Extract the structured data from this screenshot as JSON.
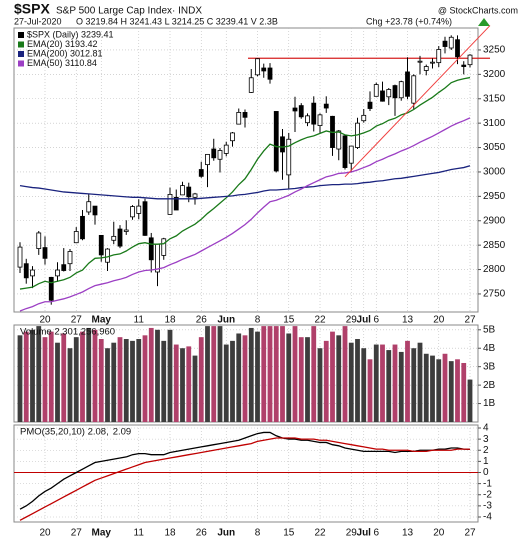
{
  "chart_data": [
    {
      "type": "candlestick",
      "title": "$SPX",
      "subtitle": "S&P 500 Large Cap Index· INDX",
      "source": "@ StockCharts.com",
      "date": "27-Jul-2020",
      "quote": "O 3219.84  H 3241.43  L 3214.25  C 3239.41  V 2.3B",
      "change": "Chg +23.78 (+0.74%)",
      "categories": [
        null,
        null,
        null,
        null,
        "20",
        null,
        null,
        null,
        null,
        "27",
        null,
        null,
        null,
        "May",
        null,
        null,
        null,
        null,
        null,
        "11",
        null,
        null,
        null,
        null,
        "18",
        null,
        null,
        null,
        null,
        "26",
        null,
        null,
        null,
        "Jun",
        null,
        null,
        null,
        null,
        "8",
        null,
        null,
        null,
        null,
        "15",
        null,
        null,
        null,
        null,
        "22",
        null,
        null,
        null,
        null,
        "29",
        null,
        "Jul",
        null,
        "6",
        null,
        null,
        null,
        null,
        "13",
        null,
        null,
        null,
        null,
        "20",
        null,
        null,
        null,
        null,
        "27"
      ],
      "ylim": [
        2713,
        3295
      ],
      "yticks": [
        2750,
        2800,
        2850,
        2900,
        2950,
        3000,
        3050,
        3100,
        3150,
        3200,
        3250
      ],
      "grid": true,
      "hline": {
        "value": 3233,
        "color": "#d62020"
      },
      "trendline": {
        "values": [
          2990,
          3300
        ],
        "color": "#f04040"
      },
      "series": [
        {
          "name": "$SPX (Daily) 3239.41",
          "type": "candlestick",
          "color": "#000000",
          "up_color": "#ffffff",
          "down_color": "#000000",
          "open": [
            2805,
            2812,
            2787,
            2843,
            2845,
            2784,
            2787,
            2810,
            2812,
            2855,
            2909,
            2918,
            2930,
            2870,
            2815,
            2860,
            2883,
            2878,
            2908,
            2915,
            2939,
            2865,
            2795,
            2829,
            2913,
            2948,
            2953,
            2969,
            2948,
            3005,
            3015,
            3047,
            3026,
            3038,
            3064,
            3098,
            3122,
            3163,
            3199,
            3213,
            3213,
            3124,
            3072,
            2994,
            3131,
            3136,
            3101,
            3141,
            3095,
            3139,
            3114,
            3047,
            3074,
            3018,
            3050,
            3105,
            3143,
            3155,
            3166,
            3154,
            3177,
            3152,
            3205,
            3141,
            3225,
            3208,
            3224,
            3224,
            3268,
            3254,
            3271,
            3219,
            3219.84
          ],
          "high": [
            2856,
            2822,
            2807,
            2879,
            2868,
            2785,
            2815,
            2844,
            2842,
            2887,
            2922,
            2954,
            2930,
            2870,
            2844,
            2898,
            2891,
            2901,
            2932,
            2944,
            2945,
            2875,
            2853,
            2865,
            2968,
            2964,
            2980,
            2978,
            2957,
            3021,
            3036,
            3068,
            3049,
            3062,
            3082,
            3130,
            3128,
            3211,
            3233,
            3222,
            3223,
            3124,
            3088,
            3080,
            3154,
            3141,
            3120,
            3155,
            3120,
            3155,
            3115,
            3086,
            3074,
            3053,
            3111,
            3129,
            3165,
            3183,
            3185,
            3172,
            3179,
            3187,
            3235,
            3200,
            3238,
            3220,
            3233,
            3258,
            3277,
            3280,
            3280,
            3227,
            3241.43
          ],
          "low": [
            2793,
            2771,
            2762,
            2830,
            2810,
            2728,
            2775,
            2796,
            2797,
            2854,
            2860,
            2912,
            2892,
            2816,
            2797,
            2852,
            2844,
            2871,
            2902,
            2903,
            2869,
            2794,
            2766,
            2820,
            2913,
            2922,
            2953,
            2938,
            2933,
            2988,
            2969,
            3023,
            2999,
            3032,
            3052,
            3098,
            3091,
            3162,
            3196,
            3193,
            3181,
            2999,
            2984,
            2966,
            3082,
            3109,
            3094,
            3083,
            3079,
            3121,
            3033,
            3024,
            3005,
            2999,
            3047,
            3101,
            3125,
            3155,
            3144,
            3137,
            3115,
            3146,
            3149,
            3128,
            3200,
            3198,
            3212,
            3215,
            3243,
            3250,
            3221,
            3200,
            3214.25
          ],
          "close": [
            2846,
            2783,
            2799,
            2875,
            2823,
            2737,
            2799,
            2798,
            2837,
            2878,
            2863,
            2939,
            2912,
            2830,
            2842,
            2868,
            2848,
            2881,
            2929,
            2930,
            2870,
            2820,
            2852,
            2863,
            2954,
            2922,
            2972,
            2949,
            2955,
            2991,
            3036,
            3029,
            3044,
            3055,
            3080,
            3122,
            3112,
            3193,
            3232,
            3207,
            3190,
            3002,
            3041,
            3067,
            3125,
            3113,
            3115,
            3098,
            3117,
            3131,
            3050,
            3084,
            3009,
            3053,
            3100,
            3116,
            3130,
            3179,
            3145,
            3169,
            3152,
            3185,
            3155,
            3197,
            3227,
            3216,
            3225,
            3251,
            3257,
            3276,
            3236,
            3216,
            3239.41
          ]
        },
        {
          "name": "EMA(20) 3193.42",
          "type": "line",
          "color": "#1a7a1a",
          "values": [
            2760,
            2762,
            2764,
            2771,
            2776,
            2773,
            2776,
            2779,
            2784,
            2793,
            2799,
            2813,
            2823,
            2824,
            2826,
            2830,
            2832,
            2838,
            2846,
            2853,
            2855,
            2852,
            2852,
            2853,
            2863,
            2869,
            2879,
            2886,
            2893,
            2903,
            2915,
            2925,
            2936,
            2947,
            2959,
            2974,
            2986,
            3005,
            3026,
            3043,
            3057,
            3052,
            3051,
            3053,
            3060,
            3066,
            3071,
            3074,
            3079,
            3084,
            3081,
            3082,
            3076,
            3074,
            3076,
            3080,
            3085,
            3094,
            3099,
            3106,
            3110,
            3117,
            3121,
            3128,
            3137,
            3145,
            3153,
            3163,
            3172,
            3183,
            3188,
            3191,
            3193.42
          ]
        },
        {
          "name": "EMA(200) 3012.81",
          "type": "line",
          "color": "#1a237e",
          "values": [
            2972,
            2970,
            2968,
            2967,
            2965,
            2963,
            2961,
            2959,
            2958,
            2957,
            2956,
            2955,
            2954,
            2953,
            2952,
            2951,
            2950,
            2949,
            2948,
            2948,
            2947,
            2946,
            2945,
            2945,
            2945,
            2945,
            2945,
            2945,
            2945,
            2946,
            2947,
            2948,
            2949,
            2950,
            2951,
            2953,
            2954,
            2956,
            2958,
            2961,
            2963,
            2963,
            2964,
            2965,
            2966,
            2968,
            2969,
            2970,
            2972,
            2973,
            2974,
            2974,
            2975,
            2975,
            2976,
            2978,
            2979,
            2981,
            2982,
            2984,
            2986,
            2987,
            2989,
            2991,
            2993,
            2995,
            2997,
            2999,
            3002,
            3005,
            3007,
            3009,
            3012.81
          ]
        },
        {
          "name": "EMA(50) 3110.84",
          "type": "line",
          "color": "#9c3fc4",
          "values": [
            2715,
            2720,
            2724,
            2730,
            2734,
            2734,
            2737,
            2740,
            2744,
            2749,
            2754,
            2761,
            2767,
            2770,
            2773,
            2777,
            2780,
            2784,
            2790,
            2795,
            2798,
            2799,
            2801,
            2804,
            2810,
            2815,
            2821,
            2826,
            2831,
            2838,
            2845,
            2852,
            2859,
            2866,
            2874,
            2883,
            2892,
            2903,
            2916,
            2928,
            2939,
            2942,
            2947,
            2952,
            2959,
            2965,
            2972,
            2978,
            2984,
            2990,
            2993,
            2997,
            2998,
            3000,
            3004,
            3009,
            3014,
            3021,
            3026,
            3032,
            3037,
            3043,
            3048,
            3054,
            3061,
            3067,
            3073,
            3080,
            3087,
            3094,
            3100,
            3105,
            3110.84
          ]
        }
      ]
    },
    {
      "type": "bar",
      "legend": "Volume 2,301,256,960",
      "up_color": "#3d3d3d",
      "down_color": "#b0406a",
      "ylim": [
        0,
        5.26
      ],
      "grid": true,
      "yticks": [
        {
          "value": 1,
          "label": "1B"
        },
        {
          "value": 2,
          "label": "2B"
        },
        {
          "value": 3,
          "label": "3B"
        },
        {
          "value": 4,
          "label": "4B"
        },
        {
          "value": 5,
          "label": "5B"
        }
      ],
      "values": [
        4.7,
        4.9,
        5.0,
        5.2,
        4.6,
        4.9,
        4.3,
        4.8,
        4.0,
        4.6,
        4.9,
        5.1,
        5.0,
        4.5,
        4.0,
        4.3,
        4.6,
        4.5,
        4.4,
        4.5,
        4.7,
        5.1,
        5.0,
        4.4,
        5.0,
        4.2,
        4.0,
        4.1,
        3.6,
        4.6,
        5.2,
        5.2,
        5.2,
        4.2,
        4.4,
        4.8,
        4.7,
        5.1,
        4.9,
        5.2,
        5.2,
        5.2,
        5.2,
        4.8,
        5.2,
        4.6,
        4.6,
        5.2,
        4.0,
        4.4,
        4.9,
        4.7,
        5.2,
        4.3,
        4.5,
        4.0,
        3.4,
        4.2,
        4.2,
        3.9,
        4.2,
        3.8,
        4.4,
        4.0,
        4.3,
        3.7,
        3.6,
        3.4,
        3.7,
        3.3,
        3.4,
        3.2,
        2.3
      ]
    },
    {
      "type": "line",
      "ylim": [
        -4.45,
        4.27
      ],
      "yticks": [
        -4,
        -3,
        -2,
        -1,
        0,
        1,
        2,
        3,
        4
      ],
      "grid": true,
      "zero_line_color": "#c00000",
      "series": [
        {
          "name": "PMO(35,20,10) 2.08,",
          "color": "#000000",
          "values": [
            -3.3,
            -3.0,
            -2.6,
            -2.1,
            -1.7,
            -1.4,
            -1.0,
            -0.6,
            -0.3,
            0.0,
            0.3,
            0.6,
            0.9,
            1.0,
            1.1,
            1.2,
            1.3,
            1.4,
            1.6,
            1.7,
            1.7,
            1.6,
            1.6,
            1.6,
            1.8,
            1.9,
            2.0,
            2.1,
            2.2,
            2.3,
            2.4,
            2.5,
            2.6,
            2.7,
            2.8,
            2.9,
            3.1,
            3.3,
            3.5,
            3.6,
            3.6,
            3.3,
            3.1,
            3.0,
            3.0,
            2.9,
            2.9,
            2.8,
            2.7,
            2.7,
            2.5,
            2.4,
            2.2,
            2.1,
            2.0,
            1.9,
            1.9,
            1.9,
            1.9,
            1.9,
            1.8,
            1.9,
            1.9,
            1.9,
            2.0,
            2.0,
            2.0,
            2.1,
            2.1,
            2.2,
            2.2,
            2.1,
            2.08
          ]
        },
        {
          "name": "2.09",
          "color": "#c00000",
          "values": [
            -4.3,
            -4.0,
            -3.7,
            -3.4,
            -3.1,
            -2.8,
            -2.5,
            -2.2,
            -1.9,
            -1.6,
            -1.3,
            -1.0,
            -0.7,
            -0.5,
            -0.3,
            -0.1,
            0.1,
            0.3,
            0.5,
            0.7,
            0.9,
            1.0,
            1.1,
            1.2,
            1.3,
            1.4,
            1.5,
            1.6,
            1.7,
            1.8,
            1.9,
            2.0,
            2.1,
            2.2,
            2.3,
            2.4,
            2.5,
            2.6,
            2.8,
            2.9,
            3.0,
            3.1,
            3.1,
            3.1,
            3.1,
            3.0,
            3.0,
            3.0,
            2.9,
            2.9,
            2.8,
            2.7,
            2.6,
            2.5,
            2.4,
            2.3,
            2.2,
            2.1,
            2.1,
            2.0,
            2.0,
            2.0,
            2.0,
            1.9,
            1.9,
            1.9,
            2.0,
            2.0,
            2.0,
            2.0,
            2.1,
            2.1,
            2.09
          ]
        }
      ]
    }
  ]
}
